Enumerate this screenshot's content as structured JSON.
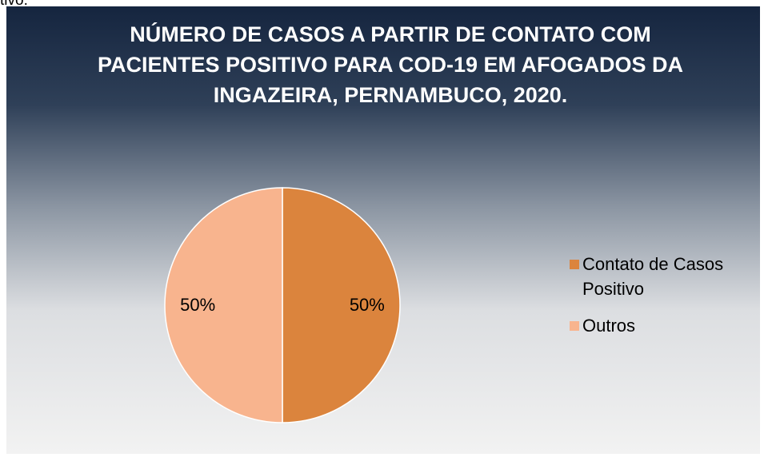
{
  "header_fragment": "tivo.",
  "chart_data": {
    "type": "pie",
    "title": "NÚMERO DE CASOS A PARTIR DE CONTATO COM PACIENTES POSITIVO PARA COD-19 EM AFOGADOS DA INGAZEIRA, PERNAMBUCO, 2020.",
    "categories": [
      "Contato de Casos Positivo",
      "Outros"
    ],
    "values": [
      50,
      50
    ],
    "value_labels": [
      "50%",
      "50%"
    ],
    "colors": [
      "#db843d",
      "#f8b48e"
    ],
    "legend": "right"
  }
}
